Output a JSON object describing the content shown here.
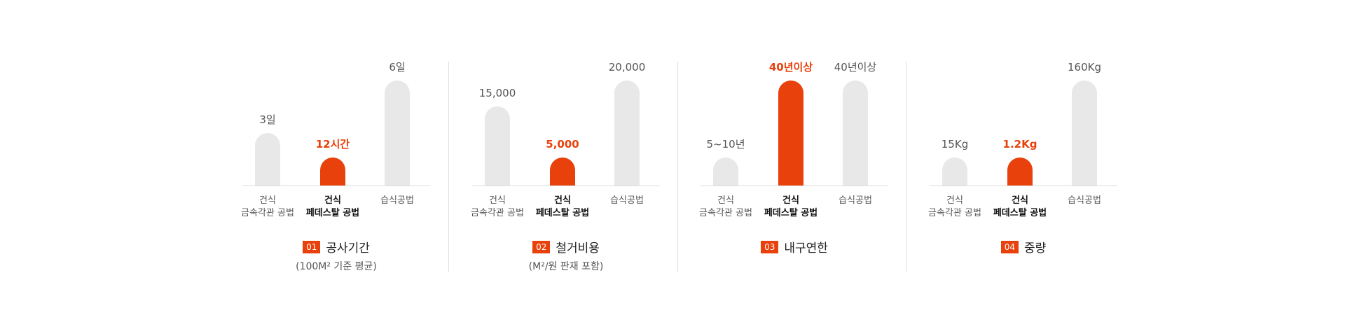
{
  "chart_data": [
    {
      "type": "bar",
      "number": "01",
      "title": "공사기간",
      "subtitle": "(100M² 기준 평균)",
      "highlight_index": 1,
      "categories": [
        [
          "건식",
          "금속각관 공법"
        ],
        [
          "건식",
          "페데스탈 공법"
        ],
        [
          "습식공법"
        ]
      ],
      "value_labels": [
        "3일",
        "12시간",
        "6일"
      ],
      "values": [
        3,
        0.5,
        6
      ]
    },
    {
      "type": "bar",
      "number": "02",
      "title": "철거비용",
      "subtitle": "(M²/원 판재 포함)",
      "highlight_index": 1,
      "categories": [
        [
          "건식",
          "금속각관 공법"
        ],
        [
          "건식",
          "페데스탈 공법"
        ],
        [
          "습식공법"
        ]
      ],
      "value_labels": [
        "15,000",
        "5,000",
        "20,000"
      ],
      "values": [
        15000,
        5000,
        20000
      ]
    },
    {
      "type": "bar",
      "number": "03",
      "title": "내구연한",
      "subtitle": "",
      "highlight_index": 1,
      "categories": [
        [
          "건식",
          "금속각관 공법"
        ],
        [
          "건식",
          "페데스탈 공법"
        ],
        [
          "습식공법"
        ]
      ],
      "value_labels": [
        "5~10년",
        "40년이상",
        "40년이상"
      ],
      "values": [
        10,
        40,
        40
      ]
    },
    {
      "type": "bar",
      "number": "04",
      "title": "중량",
      "subtitle": "",
      "highlight_index": 1,
      "categories": [
        [
          "건식",
          "금속각관 공법"
        ],
        [
          "건식",
          "페데스탈 공법"
        ],
        [
          "습식공법"
        ]
      ],
      "value_labels": [
        "15Kg",
        "1.2Kg",
        "160Kg"
      ],
      "values": [
        15,
        1.2,
        160
      ]
    }
  ],
  "colors": {
    "accent": "#e8410c",
    "bar": "#e8e8e8",
    "divider": "#e0e0e0"
  }
}
